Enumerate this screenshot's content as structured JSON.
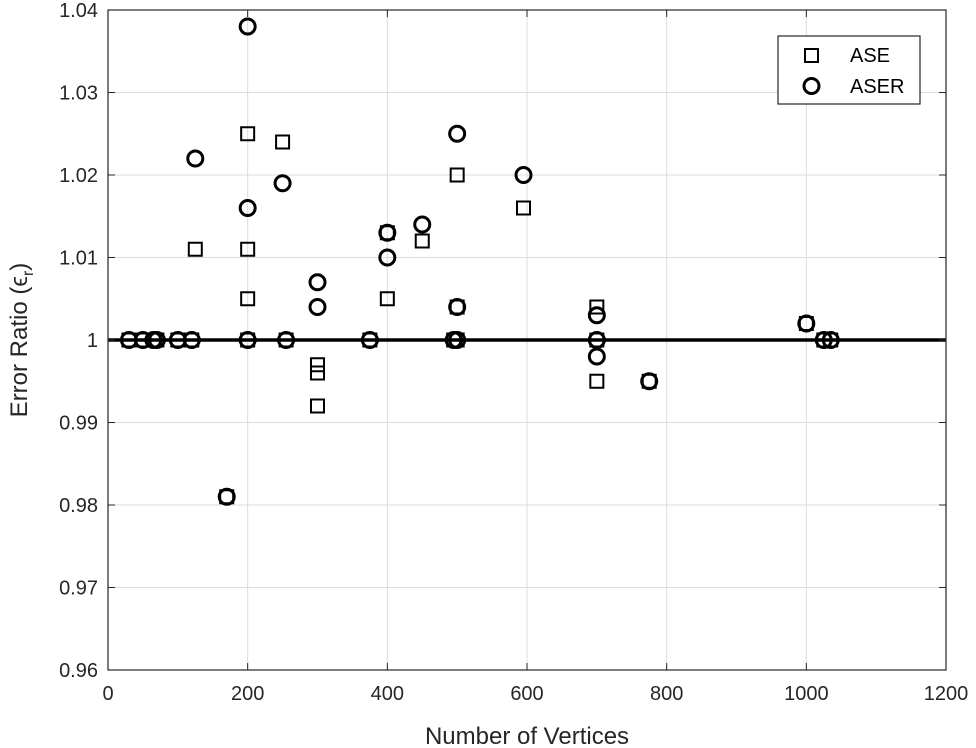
{
  "chart_data": {
    "type": "scatter",
    "xlabel": "Number of Vertices",
    "ylabel_main": "Error Ratio (",
    "ylabel_symbol": "ϵ",
    "ylabel_sub": "r",
    "ylabel_close": ")",
    "xlim": [
      0,
      1200
    ],
    "ylim": [
      0.96,
      1.04
    ],
    "x_ticks": [
      0,
      200,
      400,
      600,
      800,
      1000,
      1200
    ],
    "y_ticks": [
      0.96,
      0.97,
      0.98,
      0.99,
      1.0,
      1.01,
      1.02,
      1.03,
      1.04
    ],
    "x_tick_labels": [
      "0",
      "200",
      "400",
      "600",
      "800",
      "1000",
      "1200"
    ],
    "y_tick_labels": [
      "0.96",
      "0.97",
      "0.98",
      "0.99",
      "1",
      "1.01",
      "1.02",
      "1.03",
      "1.04"
    ],
    "grid": true,
    "legend_position": "top-right",
    "reference_line": {
      "y": 1.0,
      "color": "#000000"
    },
    "series": [
      {
        "name": "ASE",
        "marker": "square",
        "color": "#000000",
        "points": [
          [
            30,
            1.0
          ],
          [
            50,
            1.0
          ],
          [
            65,
            1.0
          ],
          [
            70,
            1.0
          ],
          [
            100,
            1.0
          ],
          [
            120,
            1.0
          ],
          [
            125,
            1.011
          ],
          [
            170,
            0.981
          ],
          [
            200,
            1.025
          ],
          [
            200,
            1.011
          ],
          [
            200,
            1.005
          ],
          [
            200,
            1.0
          ],
          [
            250,
            1.024
          ],
          [
            255,
            1.0
          ],
          [
            300,
            0.997
          ],
          [
            300,
            0.996
          ],
          [
            300,
            0.992
          ],
          [
            375,
            1.0
          ],
          [
            400,
            1.013
          ],
          [
            400,
            1.005
          ],
          [
            450,
            1.012
          ],
          [
            495,
            1.0
          ],
          [
            500,
            1.02
          ],
          [
            500,
            1.004
          ],
          [
            500,
            1.0
          ],
          [
            595,
            1.016
          ],
          [
            700,
            1.004
          ],
          [
            700,
            1.0
          ],
          [
            700,
            0.995
          ],
          [
            775,
            0.995
          ],
          [
            1000,
            1.002
          ],
          [
            1025,
            1.0
          ],
          [
            1035,
            1.0
          ]
        ]
      },
      {
        "name": "ASER",
        "marker": "circle",
        "color": "#000000",
        "points": [
          [
            30,
            1.0
          ],
          [
            50,
            1.0
          ],
          [
            65,
            1.0
          ],
          [
            70,
            1.0
          ],
          [
            100,
            1.0
          ],
          [
            120,
            1.0
          ],
          [
            125,
            1.022
          ],
          [
            170,
            0.981
          ],
          [
            200,
            1.038
          ],
          [
            200,
            1.016
          ],
          [
            200,
            1.0
          ],
          [
            250,
            1.019
          ],
          [
            255,
            1.0
          ],
          [
            300,
            1.007
          ],
          [
            300,
            1.004
          ],
          [
            375,
            1.0
          ],
          [
            400,
            1.013
          ],
          [
            400,
            1.01
          ],
          [
            450,
            1.014
          ],
          [
            495,
            1.0
          ],
          [
            500,
            1.025
          ],
          [
            500,
            1.004
          ],
          [
            500,
            1.0
          ],
          [
            595,
            1.02
          ],
          [
            700,
            1.003
          ],
          [
            700,
            1.0
          ],
          [
            700,
            0.998
          ],
          [
            775,
            0.995
          ],
          [
            1000,
            1.002
          ],
          [
            1025,
            1.0
          ],
          [
            1035,
            1.0
          ]
        ]
      }
    ]
  }
}
